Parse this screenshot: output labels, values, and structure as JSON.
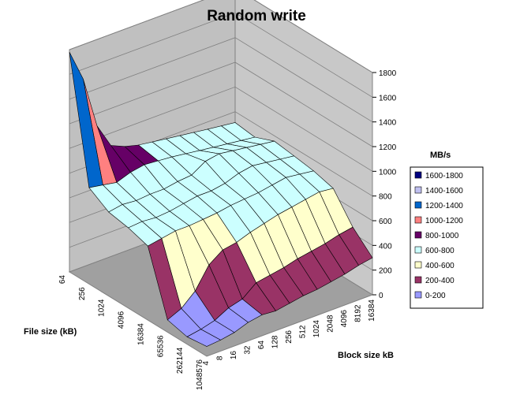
{
  "chart_data": {
    "type": "surface",
    "title": "Random write",
    "xlabel": "File size (kB)",
    "ylabel": "Block size kB",
    "zlabel": "MB/s",
    "file_sizes": [
      "64",
      "256",
      "1024",
      "4096",
      "16384",
      "65536",
      "262144",
      "1048576"
    ],
    "block_sizes": [
      "4",
      "8",
      "16",
      "32",
      "64",
      "128",
      "256",
      "512",
      "1024",
      "2048",
      "4096",
      "8192",
      "16384"
    ],
    "z_ticks": [
      "0",
      "200",
      "400",
      "600",
      "800",
      "1000",
      "1200",
      "1400",
      "1600",
      "1800"
    ],
    "zlim": [
      0,
      1800
    ],
    "legend_position": "right",
    "bands": [
      {
        "label": "1600-1800",
        "color": "#000080"
      },
      {
        "label": "1400-1600",
        "color": "#C0C0F0"
      },
      {
        "label": "1200-1400",
        "color": "#0066CC"
      },
      {
        "label": "1000-1200",
        "color": "#FF8080"
      },
      {
        "label": "800-1000",
        "color": "#660066"
      },
      {
        "label": "600-800",
        "color": "#CCFFFF"
      },
      {
        "label": "400-600",
        "color": "#FFFFCC"
      },
      {
        "label": "200-400",
        "color": "#993366"
      },
      {
        "label": "0-200",
        "color": "#9999FF"
      }
    ],
    "values_note_rows_are_file_sizes_cols_are_block_sizes": "",
    "values": [
      [
        1780,
        1520,
        1100,
        900,
        850,
        820,
        null,
        null,
        null,
        null,
        null,
        null,
        null
      ],
      [
        780,
        760,
        740,
        780,
        800,
        790,
        780,
        null,
        null,
        null,
        null,
        null,
        null
      ],
      [
        680,
        700,
        690,
        700,
        700,
        720,
        730,
        800,
        820,
        null,
        null,
        null,
        null
      ],
      [
        650,
        660,
        650,
        660,
        680,
        700,
        700,
        720,
        760,
        780,
        null,
        null,
        null
      ],
      [
        600,
        620,
        640,
        640,
        650,
        660,
        680,
        690,
        700,
        720,
        740,
        null,
        null
      ],
      [
        100,
        150,
        250,
        420,
        500,
        520,
        560,
        590,
        620,
        640,
        660,
        680,
        null
      ],
      [
        60,
        80,
        110,
        170,
        200,
        290,
        310,
        330,
        360,
        380,
        400,
        430,
        450
      ],
      [
        80,
        90,
        110,
        150,
        170,
        160,
        180,
        200,
        210,
        230,
        250,
        280,
        300
      ]
    ]
  }
}
